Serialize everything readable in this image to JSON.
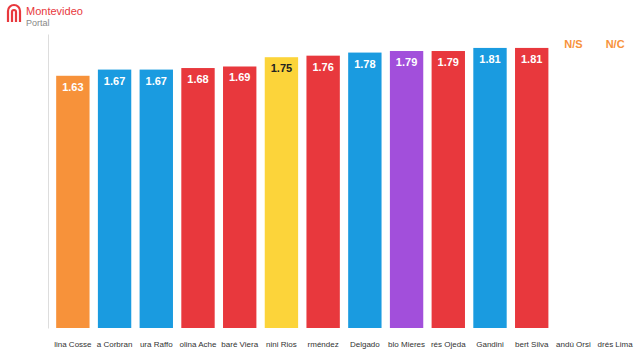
{
  "chart_data": {
    "type": "bar",
    "annotations": [
      "Montevideo",
      "Portal"
    ],
    "categories": [
      "lina Cosse",
      "a Corbran",
      "ura Raffo",
      "olina Ache",
      "baré Viera",
      "nini Rios",
      "rméndez",
      "Delgado",
      "blo Mieres",
      "rés Ojeda",
      "Gandini",
      "bert Silva",
      "andú Orsi",
      "drés Lima"
    ],
    "values": [
      1.63,
      1.67,
      1.67,
      1.68,
      1.69,
      1.75,
      1.76,
      1.78,
      1.79,
      1.79,
      1.81,
      1.81,
      null,
      null
    ],
    "value_labels": [
      "1.63",
      "1.67",
      "1.67",
      "1.68",
      "1.69",
      "1.75",
      "1.76",
      "1.78",
      "1.79",
      "1.79",
      "1.81",
      "1.81",
      "N/S",
      "N/C"
    ],
    "colors": [
      "#f7923a",
      "#1a9be0",
      "#1a9be0",
      "#e8383d",
      "#e8383d",
      "#fcd43a",
      "#e8383d",
      "#1a9be0",
      "#a24fdb",
      "#e8383d",
      "#1a9be0",
      "#e8383d",
      "#f7923a",
      "#f7923a"
    ],
    "ylim": [
      0,
      1.9
    ],
    "yticks": [],
    "grid": false,
    "data_labels": true,
    "tick_labels": false
  }
}
